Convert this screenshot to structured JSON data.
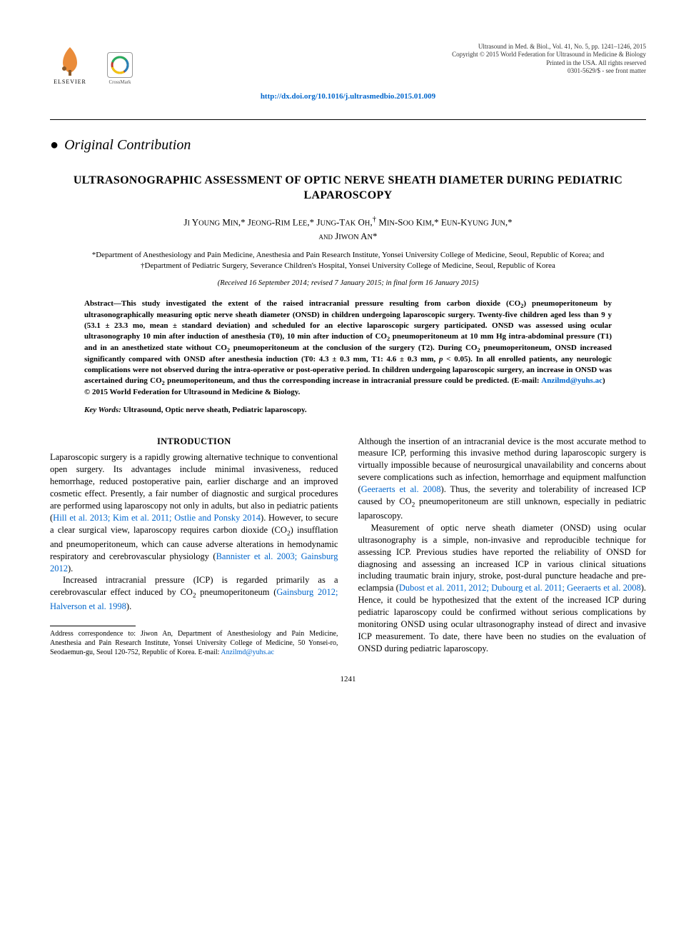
{
  "journal_meta": {
    "line1": "Ultrasound in Med. & Biol., Vol. 41, No. 5, pp. 1241–1246, 2015",
    "line2": "Copyright © 2015 World Federation for Ultrasound in Medicine & Biology",
    "line3": "Printed in the USA. All rights reserved",
    "line4": "0301-5629/$ - see front matter"
  },
  "doi": "http://dx.doi.org/10.1016/j.ultrasmedbio.2015.01.009",
  "section_type": "Original Contribution",
  "title": "ULTRASONOGRAPHIC ASSESSMENT OF OPTIC NERVE SHEATH DIAMETER DURING PEDIATRIC LAPAROSCOPY",
  "authors_html": "J<span style='font-variant:normal;font-size:0.8em'>I</span> Y<span style='font-variant:normal;font-size:0.8em'>OUNG</span> M<span style='font-variant:normal;font-size:0.8em'>IN</span>,* J<span style='font-variant:normal;font-size:0.8em'>EONG</span>-R<span style='font-variant:normal;font-size:0.8em'>IM</span> L<span style='font-variant:normal;font-size:0.8em'>EE</span>,* J<span style='font-variant:normal;font-size:0.8em'>UNG</span>-T<span style='font-variant:normal;font-size:0.8em'>AK</span> O<span style='font-variant:normal;font-size:0.8em'>H</span>,<sup>†</sup> M<span style='font-variant:normal;font-size:0.8em'>IN</span>-S<span style='font-variant:normal;font-size:0.8em'>OO</span> K<span style='font-variant:normal;font-size:0.8em'>IM</span>,* E<span style='font-variant:normal;font-size:0.8em'>UN</span>-K<span style='font-variant:normal;font-size:0.8em'>YUNG</span> J<span style='font-variant:normal;font-size:0.8em'>UN</span>,*<br>and J<span style='font-variant:normal;font-size:0.8em'>IWON</span> A<span style='font-variant:normal;font-size:0.8em'>N</span>*",
  "affiliations": "*Department of Anesthesiology and Pain Medicine, Anesthesia and Pain Research Institute, Yonsei University College of Medicine, Seoul, Republic of Korea; and †Department of Pediatric Surgery, Severance Children's Hospital, Yonsei University College of Medicine, Seoul, Republic of Korea",
  "dates": "(Received 16 September 2014; revised 7 January 2015; in final form 16 January 2015)",
  "abstract_html": "Abstract—This study investigated the extent of the raised intracranial pressure resulting from carbon dioxide (CO<sub>2</sub>) pneumoperitoneum by ultrasonographically measuring optic nerve sheath diameter (ONSD) in children undergoing laparoscopic surgery. Twenty-five children aged less than 9 y (53.1 ± 23.3 mo, mean ± standard deviation) and scheduled for an elective laparoscopic surgery participated. ONSD was assessed using ocular ultrasonography 10 min after induction of anesthesia (T0), 10 min after induction of CO<sub>2</sub> pneumoperitoneum at 10 mm Hg intra-abdominal pressure (T1) and in an anesthetized state without CO<sub>2</sub> pneumoperitoneum at the conclusion of the surgery (T2). During CO<sub>2</sub> pneumoperitoneum, ONSD increased significantly compared with ONSD after anesthesia induction (T0: 4.3 ± 0.3 mm, T1: 4.6 ± 0.3 mm, <i>p</i> &lt; 0.05). In all enrolled patients, any neurologic complications were not observed during the intra-operative or post-operative period. In children undergoing laparoscopic surgery, an increase in ONSD was ascertained during CO<sub>2</sub> pneumoperitoneum, and thus the corresponding increase in intracranial pressure could be predicted. (E-mail: <span class='email'>Anzilmd@yuhs.ac</span>) &nbsp;&nbsp; <span class='copyright'>© 2015 World Federation for Ultrasound in Medicine &amp; Biology.</span>",
  "keywords_label": "Key Words:",
  "keywords_values": "Ultrasound, Optic nerve sheath, Pediatric laparoscopy.",
  "intro_heading": "INTRODUCTION",
  "col_left": {
    "p1_html": "Laparoscopic surgery is a rapidly growing alternative technique to conventional open surgery. Its advantages include minimal invasiveness, reduced hemorrhage, reduced postoperative pain, earlier discharge and an improved cosmetic effect. Presently, a fair number of diagnostic and surgical procedures are performed using laparoscopy not only in adults, but also in pediatric patients (<span class='cite'>Hill et al. 2013; Kim et al. 2011; Ostlie and Ponsky 2014</span>). However, to secure a clear surgical view, laparoscopy requires carbon dioxide (CO<sub>2</sub>) insufflation and pneumoperitoneum, which can cause adverse alterations in hemodynamic respiratory and cerebrovascular physiology (<span class='cite'>Bannister et al. 2003; Gainsburg 2012</span>).",
    "p2_html": "Increased intracranial pressure (ICP) is regarded primarily as a cerebrovascular effect induced by CO<sub>2</sub> pneumoperitoneum (<span class='cite'>Gainsburg 2012; Halverson et al. 1998</span>)."
  },
  "col_right": {
    "p1_html": "Although the insertion of an intracranial device is the most accurate method to measure ICP, performing this invasive method during laparoscopic surgery is virtually impossible because of neurosurgical unavailability and concerns about severe complications such as infection, hemorrhage and equipment malfunction (<span class='cite'>Geeraerts et al. 2008</span>). Thus, the severity and tolerability of increased ICP caused by CO<sub>2</sub> pneumoperitoneum are still unknown, especially in pediatric laparoscopy.",
    "p2_html": "Measurement of optic nerve sheath diameter (ONSD) using ocular ultrasonography is a simple, non-invasive and reproducible technique for assessing ICP. Previous studies have reported the reliability of ONSD for diagnosing and assessing an increased ICP in various clinical situations including traumatic brain injury, stroke, post-dural puncture headache and pre-eclampsia (<span class='cite'>Dubost et al. 2011, 2012; Dubourg et al. 2011; Geeraerts et al. 2008</span>). Hence, it could be hypothesized that the extent of the increased ICP during pediatric laparoscopy could be confirmed without serious complications by monitoring ONSD using ocular ultrasonography instead of direct and invasive ICP measurement. To date, there have been no studies on the evaluation of ONSD during pediatric laparoscopy."
  },
  "footnote_html": "Address correspondence to: Jiwon An, Department of Anesthesiology and Pain Medicine, Anesthesia and Pain Research Institute, Yonsei University College of Medicine, 50 Yonsei-ro, Seodaemun-gu, Seoul 120-752, Republic of Korea. E-mail: <span class='email'>Anzilmd@yuhs.ac</span>",
  "page_number": "1241",
  "logos": {
    "elsevier": "ELSEVIER",
    "crossmark": "CrossMark"
  },
  "colors": {
    "link": "#0066cc",
    "text": "#000000",
    "bg": "#ffffff"
  }
}
